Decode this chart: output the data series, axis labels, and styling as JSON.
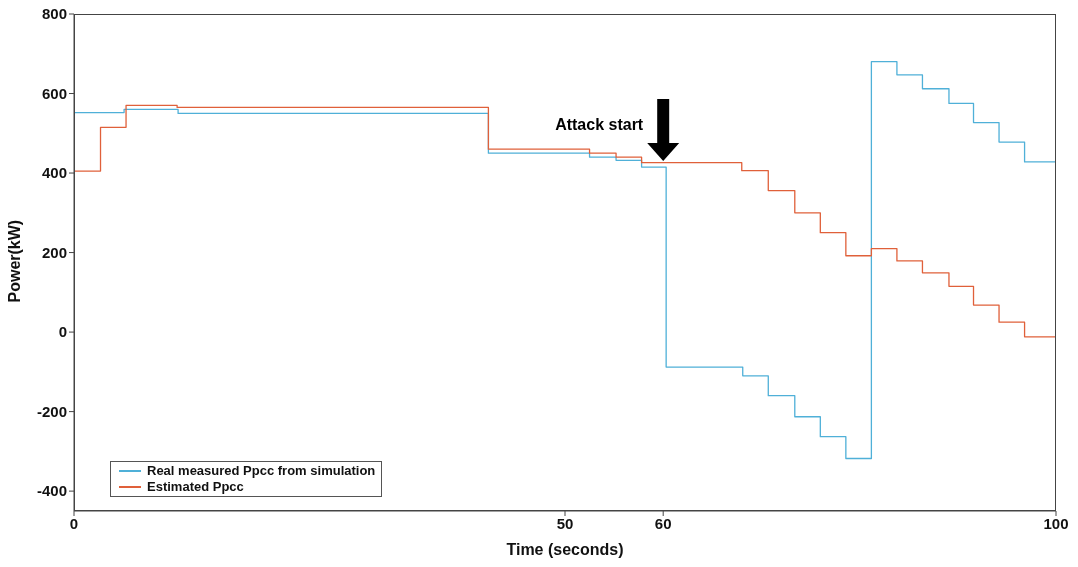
{
  "chart_data": {
    "type": "step",
    "xlabel": "Time (seconds)",
    "ylabel": "Power(kW)",
    "xlim": [
      0,
      100
    ],
    "xticks": [
      0,
      50,
      60,
      100
    ],
    "ylim": [
      -450,
      800
    ],
    "yticks": [
      -400,
      -200,
      0,
      200,
      400,
      600,
      800
    ],
    "grid": false,
    "legend": "bottom left",
    "marker": "none",
    "line_style": "solid",
    "annotations": [
      {
        "text": "Attack start",
        "x": 60,
        "y": 420
      }
    ],
    "series": [
      {
        "name": "Real measured Ppcc from simulation",
        "color": "#4fb0d8",
        "x": [
          0,
          5.1,
          10.6,
          42.2,
          52.5,
          55.2,
          57.8,
          60.3,
          68.1,
          70.7,
          73.4,
          76.0,
          78.6,
          81.2,
          83.8,
          86.4,
          89.1,
          91.6,
          94.2,
          96.8,
          100
        ],
        "values": [
          552,
          560,
          550,
          450,
          440,
          432,
          415,
          -88,
          -110,
          -160,
          -213,
          -263,
          -318,
          680,
          647,
          612,
          575,
          527,
          478,
          428,
          428
        ]
      },
      {
        "name": "Estimated Ppcc",
        "color": "#e0603a",
        "x": [
          0,
          2.7,
          5.3,
          10.5,
          42.2,
          52.5,
          55.2,
          57.8,
          68.0,
          70.7,
          73.4,
          76.0,
          78.6,
          81.2,
          83.8,
          86.4,
          89.1,
          91.6,
          94.2,
          96.8,
          100
        ],
        "values": [
          405,
          515,
          570,
          565,
          460,
          450,
          440,
          426,
          406,
          356,
          300,
          250,
          192,
          210,
          179,
          149,
          115,
          68,
          25,
          -12,
          -12
        ]
      }
    ]
  }
}
